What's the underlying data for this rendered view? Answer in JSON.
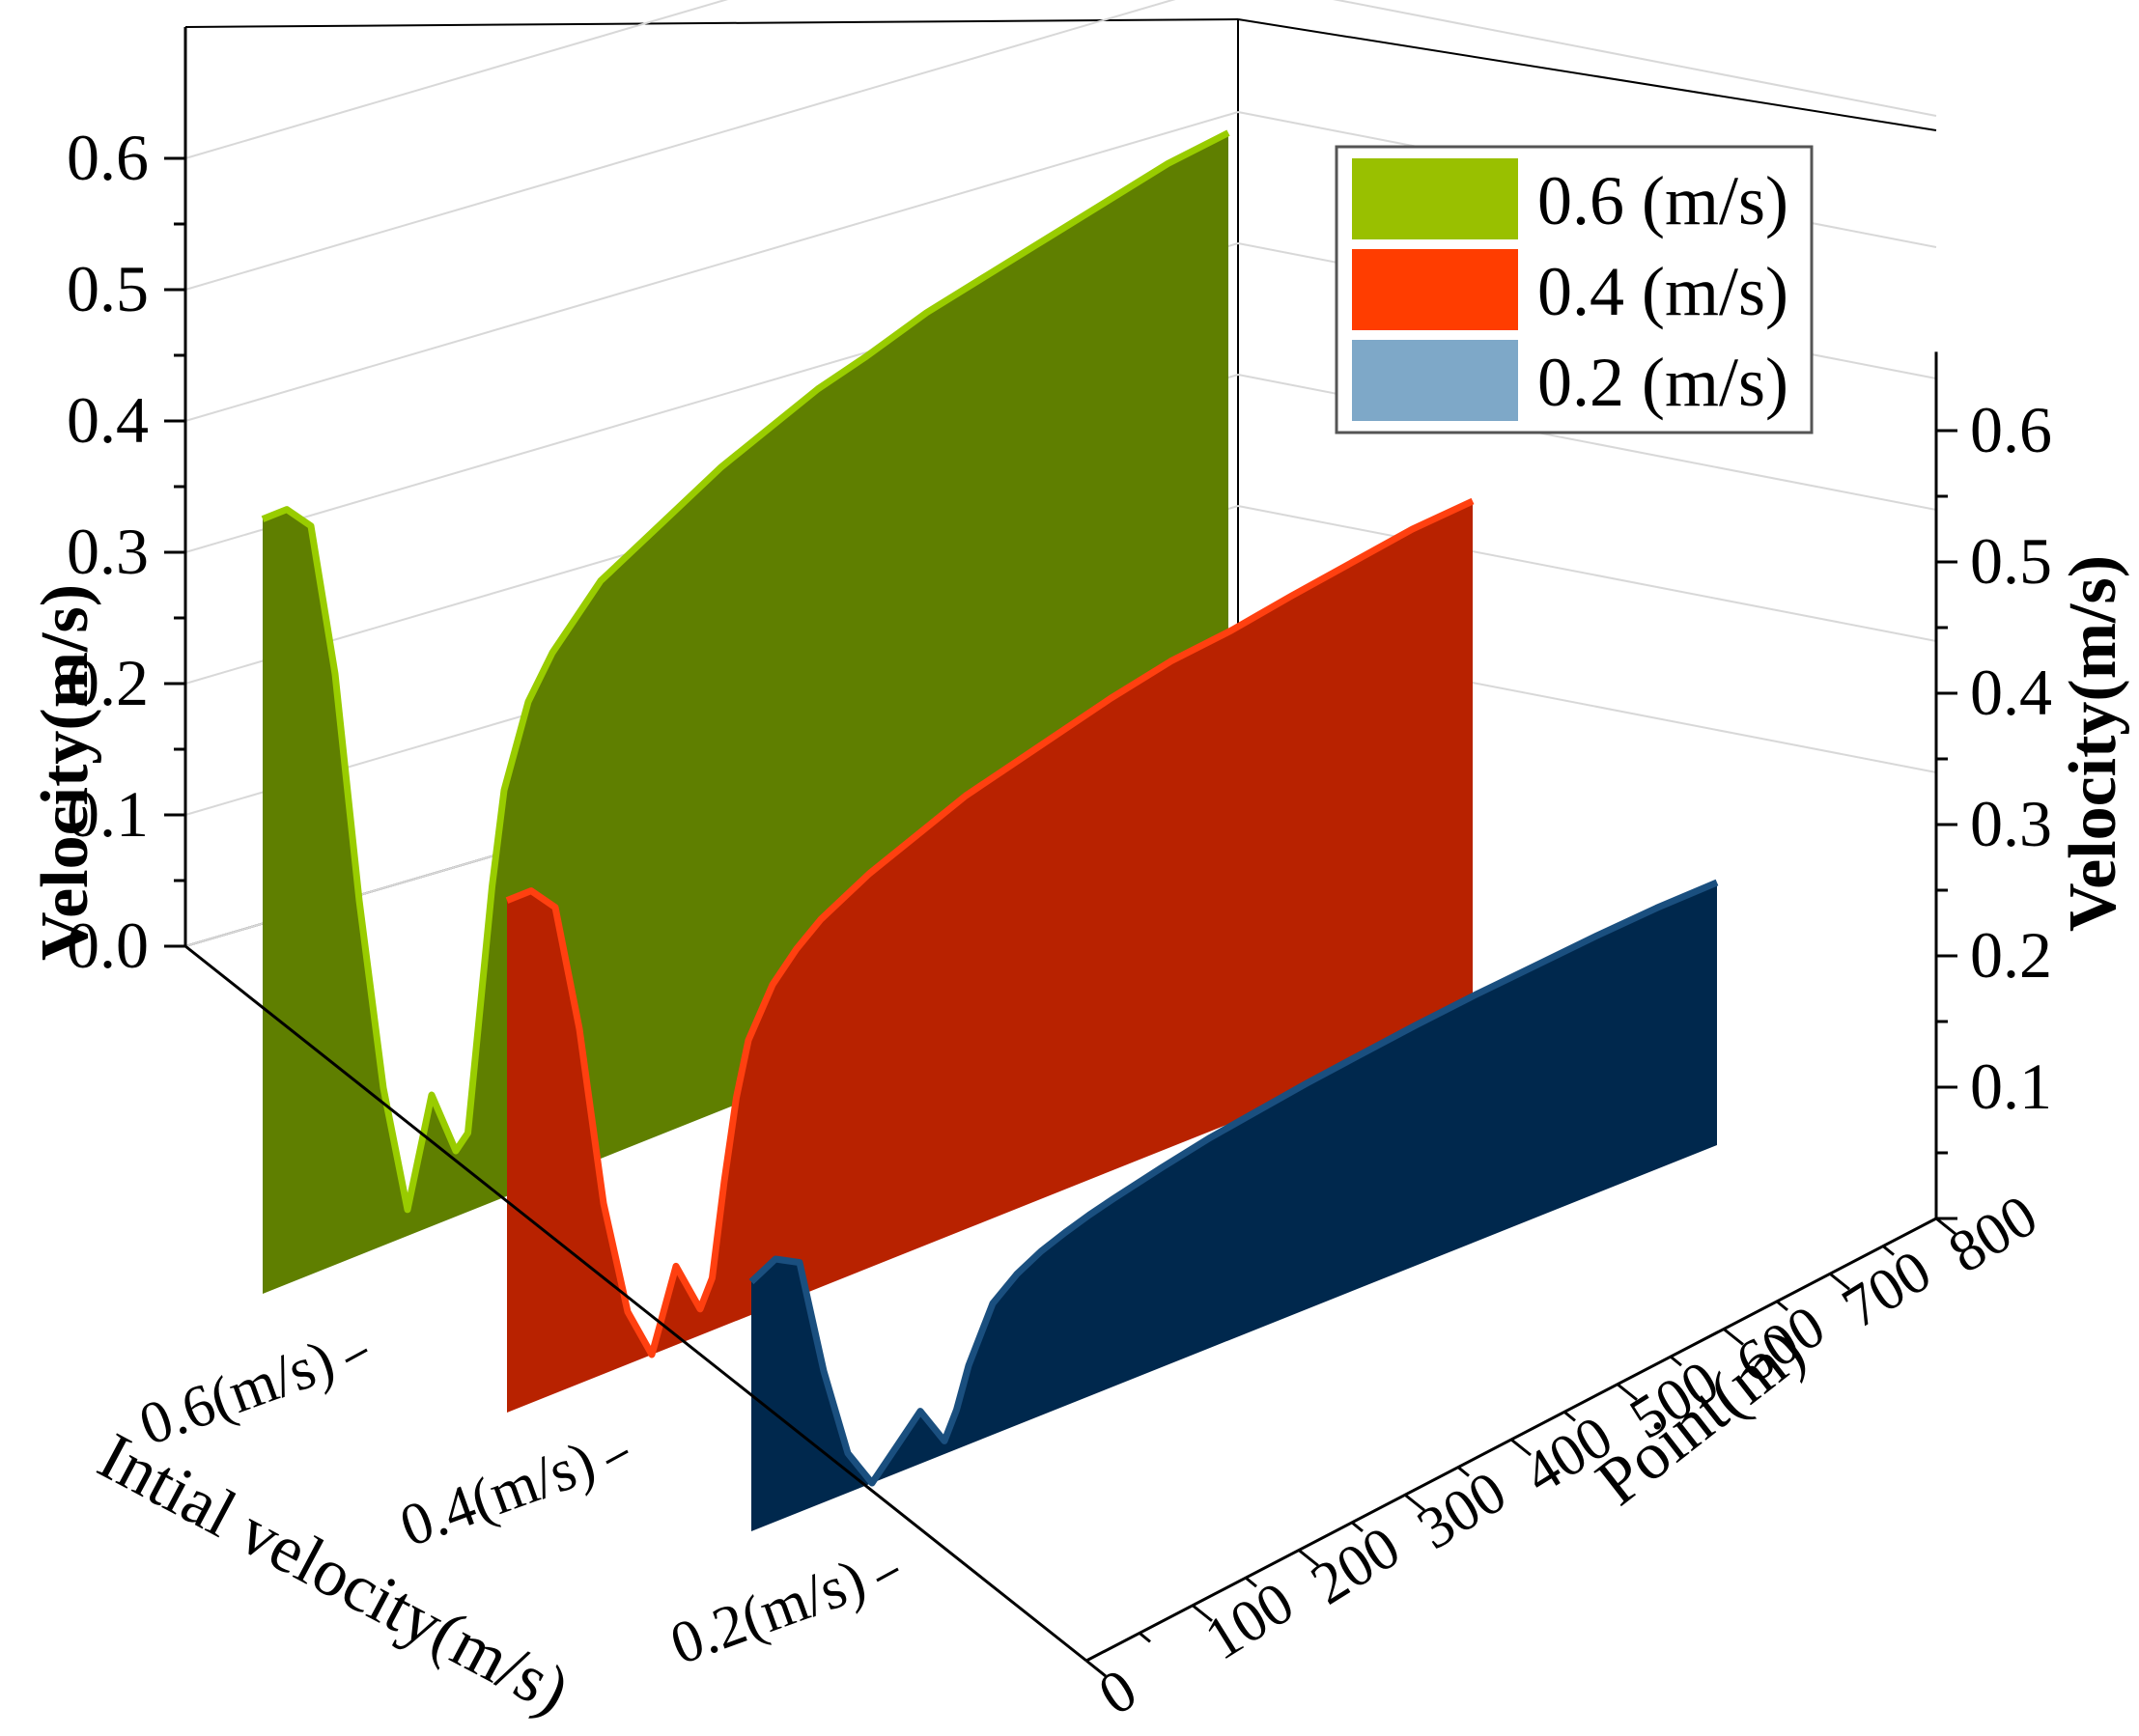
{
  "chart_data": {
    "type": "area",
    "variant": "3d-waterfall",
    "title": "",
    "zlabel_left": "Velocity(m/s)",
    "zlabel_right": "Velocity(m/s)",
    "ylabel": "Intial velocity(m/s)",
    "xlabel": "Point(m)",
    "zlim": [
      0,
      0.65
    ],
    "z_ticks": [
      0.0,
      0.1,
      0.2,
      0.3,
      0.4,
      0.5,
      0.6
    ],
    "z_ticks_left_labels": [
      "0.0",
      "0.1",
      "0.2",
      "0.3",
      "0.4",
      "0.5",
      "0.6"
    ],
    "z_ticks_right_labels": [
      "0.1",
      "0.2",
      "0.3",
      "0.4",
      "0.5",
      "0.6"
    ],
    "xlim": [
      0,
      800
    ],
    "x_ticks": [
      0,
      100,
      200,
      300,
      400,
      500,
      600,
      700,
      800
    ],
    "x_tick_labels": [
      "0",
      "100",
      "200",
      "300",
      "400",
      "500",
      "600",
      "700",
      "800"
    ],
    "categories": [
      "0.6(m/s)",
      "0.4(m/s)",
      "0.2(m/s)"
    ],
    "grid": true,
    "legend_position": "top-right",
    "legend": [
      "0.6 (m/s)",
      "0.4 (m/s)",
      "0.2 (m/s)"
    ],
    "colors": {
      "fill_06": "#5f7f00",
      "line_06": "#99cc00",
      "legend_06": "#99c000",
      "fill_04": "#b82200",
      "line_04": "#ff4010",
      "legend_04": "#ff3d00",
      "fill_02": "#00284d",
      "line_02": "#1a4f7f",
      "legend_02": "#7ea8c8"
    },
    "series": [
      {
        "name": "0.6 (m/s)",
        "x": [
          0,
          20,
          40,
          60,
          80,
          100,
          120,
          140,
          160,
          170,
          180,
          190,
          200,
          220,
          240,
          260,
          280,
          300,
          340,
          380,
          420,
          460,
          500,
          550,
          600,
          650,
          700,
          750,
          800
        ],
        "values": [
          0.59,
          0.59,
          0.57,
          0.45,
          0.27,
          0.12,
          0.02,
          0.1,
          0.05,
          0.06,
          0.15,
          0.24,
          0.31,
          0.37,
          0.4,
          0.42,
          0.44,
          0.45,
          0.47,
          0.49,
          0.505,
          0.52,
          0.53,
          0.545,
          0.555,
          0.565,
          0.575,
          0.585,
          0.59
        ]
      },
      {
        "name": "0.4 (m/s)",
        "x": [
          0,
          20,
          40,
          60,
          80,
          100,
          120,
          140,
          160,
          170,
          180,
          190,
          200,
          220,
          240,
          260,
          280,
          300,
          340,
          380,
          420,
          460,
          500,
          550,
          600,
          650,
          700,
          750,
          800
        ],
        "values": [
          0.39,
          0.39,
          0.37,
          0.27,
          0.13,
          0.04,
          0.0,
          0.06,
          0.02,
          0.04,
          0.11,
          0.17,
          0.21,
          0.245,
          0.265,
          0.28,
          0.29,
          0.3,
          0.315,
          0.33,
          0.34,
          0.35,
          0.36,
          0.37,
          0.375,
          0.383,
          0.39,
          0.397,
          0.4
        ]
      },
      {
        "name": "0.2 (m/s)",
        "x": [
          0,
          20,
          40,
          60,
          80,
          100,
          120,
          140,
          160,
          170,
          180,
          190,
          200,
          220,
          240,
          260,
          280,
          300,
          340,
          380,
          420,
          460,
          500,
          550,
          600,
          650,
          700,
          750,
          800
        ],
        "values": [
          0.19,
          0.2,
          0.19,
          0.1,
          0.03,
          0.0,
          0.02,
          0.04,
          0.01,
          0.03,
          0.06,
          0.08,
          0.1,
          0.115,
          0.125,
          0.132,
          0.138,
          0.143,
          0.152,
          0.16,
          0.166,
          0.172,
          0.177,
          0.183,
          0.188,
          0.192,
          0.196,
          0.199,
          0.2
        ]
      }
    ]
  }
}
